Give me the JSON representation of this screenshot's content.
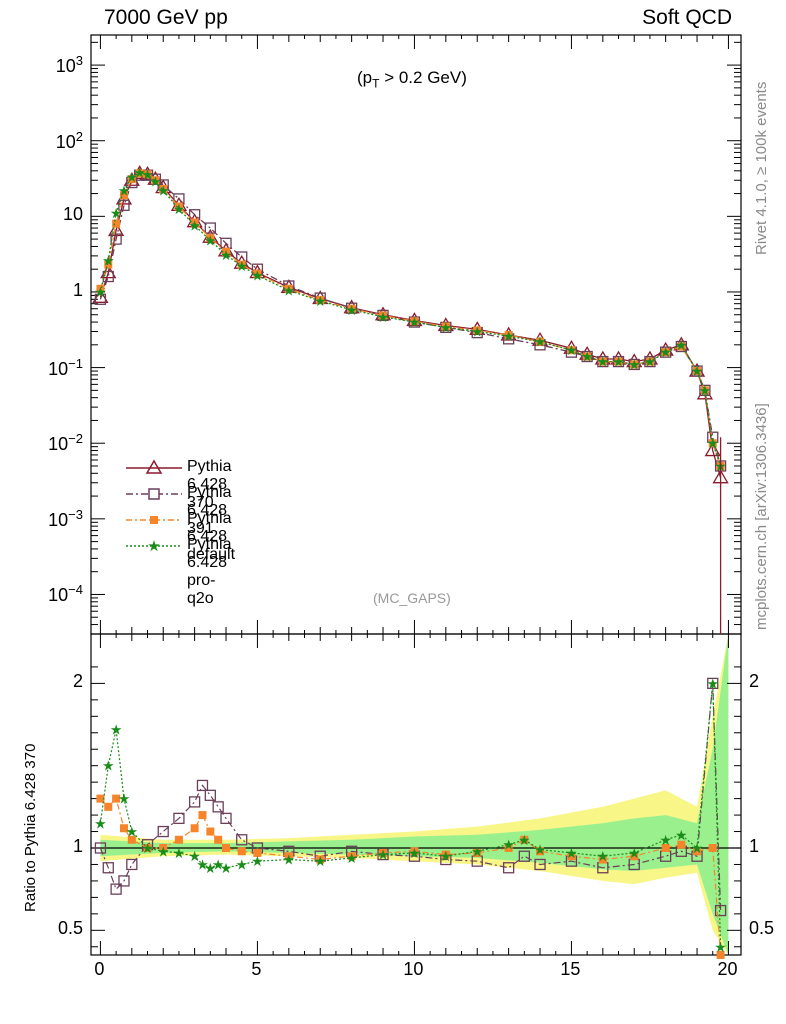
{
  "title_left": "7000 GeV pp",
  "title_right": "Soft QCD",
  "cut_label_prefix": "(p",
  "cut_label_sub": "T",
  "cut_label_suffix": " > 0.2 GeV)",
  "analysis_label": "(MC_GAPS)",
  "rivet_label": "Rivet 4.1.0, ≥ 100k events",
  "mcplots_label": "mcplots.cern.ch [arXiv:1306.3436]",
  "ratio_ylabel": "Ratio to Pythia 6.428 370",
  "colors": {
    "p370": "#8b1a2b",
    "p391": "#6b3f5a",
    "pdefault": "#f5842a",
    "pq2o": "#1a8c1a",
    "band_yellow": "#f6f57a",
    "band_green": "#8ef08e"
  },
  "legend": [
    {
      "name": "Pythia 6.428 370",
      "marker": "triangle-icon"
    },
    {
      "name": "Pythia 6.428 391",
      "marker": "square-icon"
    },
    {
      "name": "Pythia 6.428 default",
      "marker": "filled-square-icon"
    },
    {
      "name": "Pythia 6.428 pro-q2o",
      "marker": "star-icon"
    }
  ],
  "chart_data": [
    {
      "type": "line",
      "title": "(pT > 0.2 GeV)",
      "yscale": "log",
      "xlim": [
        -0.3,
        20.4
      ],
      "ylim": [
        3e-05,
        2500
      ],
      "xticks": [
        0,
        5,
        10,
        15,
        20
      ],
      "ytick_labels": [
        {
          "value": 1000,
          "base": "10",
          "exp": "3"
        },
        {
          "value": 100,
          "base": "10",
          "exp": "2"
        },
        {
          "value": 10,
          "base": "10",
          "exp": ""
        },
        {
          "value": 1,
          "base": "1",
          "exp": ""
        },
        {
          "value": 0.1,
          "base": "10",
          "exp": "−1"
        },
        {
          "value": 0.01,
          "base": "10",
          "exp": "−2"
        },
        {
          "value": 0.001,
          "base": "10",
          "exp": "−3"
        },
        {
          "value": 0.0001,
          "base": "10",
          "exp": "−4"
        }
      ],
      "x": [
        0.0,
        0.25,
        0.5,
        0.75,
        1.0,
        1.25,
        1.5,
        1.75,
        2.0,
        2.5,
        3.0,
        3.5,
        4.0,
        4.5,
        5.0,
        6.0,
        7.0,
        8.0,
        9.0,
        10.0,
        11.0,
        12.0,
        13.0,
        14.0,
        15.0,
        15.5,
        16.0,
        16.5,
        17.0,
        17.5,
        18.0,
        18.5,
        19.0,
        19.25,
        19.5,
        19.75
      ],
      "series": [
        {
          "name": "Pythia 6.428 370",
          "values": [
            0.85,
            1.8,
            6.5,
            17,
            30,
            37,
            36,
            31,
            24,
            14,
            8.5,
            5.3,
            3.5,
            2.4,
            1.8,
            1.15,
            0.82,
            0.62,
            0.5,
            0.42,
            0.36,
            0.32,
            0.27,
            0.23,
            0.18,
            0.15,
            0.13,
            0.13,
            0.12,
            0.13,
            0.17,
            0.2,
            0.09,
            0.045,
            0.008,
            0.0035
          ]
        },
        {
          "name": "Pythia 6.428 391",
          "values": [
            0.8,
            1.6,
            5.0,
            14,
            28,
            35,
            35,
            31,
            26,
            17,
            10.5,
            7.0,
            4.4,
            2.9,
            2.0,
            1.2,
            0.83,
            0.61,
            0.49,
            0.4,
            0.34,
            0.29,
            0.24,
            0.2,
            0.16,
            0.14,
            0.12,
            0.12,
            0.11,
            0.12,
            0.16,
            0.19,
            0.09,
            0.05,
            0.012,
            0.005
          ]
        },
        {
          "name": "Pythia 6.428 default",
          "values": [
            1.1,
            2.3,
            8.0,
            19,
            31,
            37,
            36,
            30,
            23,
            13.5,
            8.3,
            5.2,
            3.4,
            2.3,
            1.75,
            1.1,
            0.78,
            0.6,
            0.49,
            0.41,
            0.35,
            0.31,
            0.27,
            0.22,
            0.17,
            0.14,
            0.12,
            0.12,
            0.11,
            0.12,
            0.16,
            0.19,
            0.09,
            0.05,
            0.01,
            0.005
          ]
        },
        {
          "name": "Pythia 6.428 pro-q2o",
          "values": [
            1.0,
            2.6,
            11,
            22,
            33,
            38,
            36,
            29,
            22,
            12.5,
            7.6,
            4.8,
            3.1,
            2.2,
            1.65,
            1.05,
            0.76,
            0.58,
            0.47,
            0.4,
            0.34,
            0.3,
            0.26,
            0.22,
            0.17,
            0.14,
            0.12,
            0.12,
            0.11,
            0.12,
            0.16,
            0.2,
            0.09,
            0.05,
            0.01,
            0.005
          ]
        }
      ]
    },
    {
      "type": "line",
      "ylabel": "Ratio to Pythia 6.428 370",
      "xlim": [
        -0.3,
        20.4
      ],
      "ylim": [
        0.35,
        2.3
      ],
      "yticks": [
        0.5,
        1,
        2
      ],
      "ytick_labels": [
        "0.5",
        "1",
        "2"
      ],
      "xticks": [
        0,
        5,
        10,
        15,
        20
      ],
      "xtick_labels": [
        "0",
        "5",
        "10",
        "15",
        "20"
      ],
      "x": [
        0.0,
        0.25,
        0.5,
        0.75,
        1.0,
        1.5,
        2.0,
        2.5,
        3.0,
        3.25,
        3.5,
        3.75,
        4.0,
        4.5,
        5.0,
        6.0,
        7.0,
        8.0,
        9.0,
        10.0,
        11.0,
        12.0,
        13.0,
        13.5,
        14.0,
        15.0,
        16.0,
        17.0,
        18.0,
        18.5,
        19.0,
        19.5,
        19.75
      ],
      "series": [
        {
          "name": "Pythia 6.428 391",
          "values": [
            1.0,
            0.88,
            0.75,
            0.8,
            0.9,
            1.02,
            1.1,
            1.18,
            1.28,
            1.38,
            1.32,
            1.25,
            1.18,
            1.05,
            1.0,
            0.98,
            0.95,
            0.98,
            0.96,
            0.95,
            0.93,
            0.92,
            0.88,
            0.95,
            0.9,
            0.92,
            0.88,
            0.9,
            0.95,
            0.98,
            0.95,
            2.0,
            0.62
          ]
        },
        {
          "name": "Pythia 6.428 default",
          "values": [
            1.3,
            1.25,
            1.3,
            1.12,
            1.05,
            1.0,
            1.0,
            1.05,
            1.12,
            1.2,
            1.1,
            1.05,
            1.0,
            0.98,
            0.97,
            0.95,
            0.93,
            0.95,
            0.97,
            0.98,
            0.96,
            0.97,
            1.0,
            1.05,
            0.98,
            0.95,
            0.93,
            0.95,
            1.0,
            1.02,
            0.98,
            1.0,
            0.35
          ]
        },
        {
          "name": "Pythia 6.428 pro-q2o",
          "values": [
            1.15,
            1.5,
            1.72,
            1.3,
            1.1,
            1.0,
            0.98,
            0.97,
            0.95,
            0.9,
            0.88,
            0.9,
            0.88,
            0.9,
            0.92,
            0.93,
            0.92,
            0.94,
            0.96,
            0.97,
            0.95,
            0.98,
            1.02,
            1.05,
            0.99,
            0.97,
            0.95,
            0.97,
            1.05,
            1.08,
            1.0,
            2.0,
            0.4
          ]
        }
      ],
      "bands": [
        {
          "name": "MC uncertainty (yellow)",
          "x": [
            0,
            2,
            4,
            6,
            8,
            10,
            12,
            14,
            16,
            17,
            18,
            19,
            19.5,
            20
          ],
          "lower": [
            0.92,
            0.95,
            0.96,
            0.95,
            0.94,
            0.92,
            0.9,
            0.86,
            0.8,
            0.78,
            0.82,
            0.85,
            0.5,
            0.35
          ],
          "upper": [
            1.08,
            1.05,
            1.05,
            1.06,
            1.08,
            1.1,
            1.13,
            1.18,
            1.25,
            1.3,
            1.35,
            1.25,
            1.8,
            2.3
          ]
        },
        {
          "name": "MC uncertainty (green)",
          "x": [
            0,
            2,
            4,
            6,
            8,
            10,
            12,
            14,
            16,
            17,
            18,
            19,
            19.5,
            20
          ],
          "lower": [
            0.95,
            0.97,
            0.98,
            0.97,
            0.96,
            0.95,
            0.94,
            0.91,
            0.87,
            0.86,
            0.88,
            0.9,
            0.6,
            0.35
          ],
          "upper": [
            1.05,
            1.03,
            1.03,
            1.04,
            1.05,
            1.07,
            1.08,
            1.11,
            1.15,
            1.18,
            1.2,
            1.15,
            1.6,
            2.3
          ]
        }
      ]
    }
  ]
}
